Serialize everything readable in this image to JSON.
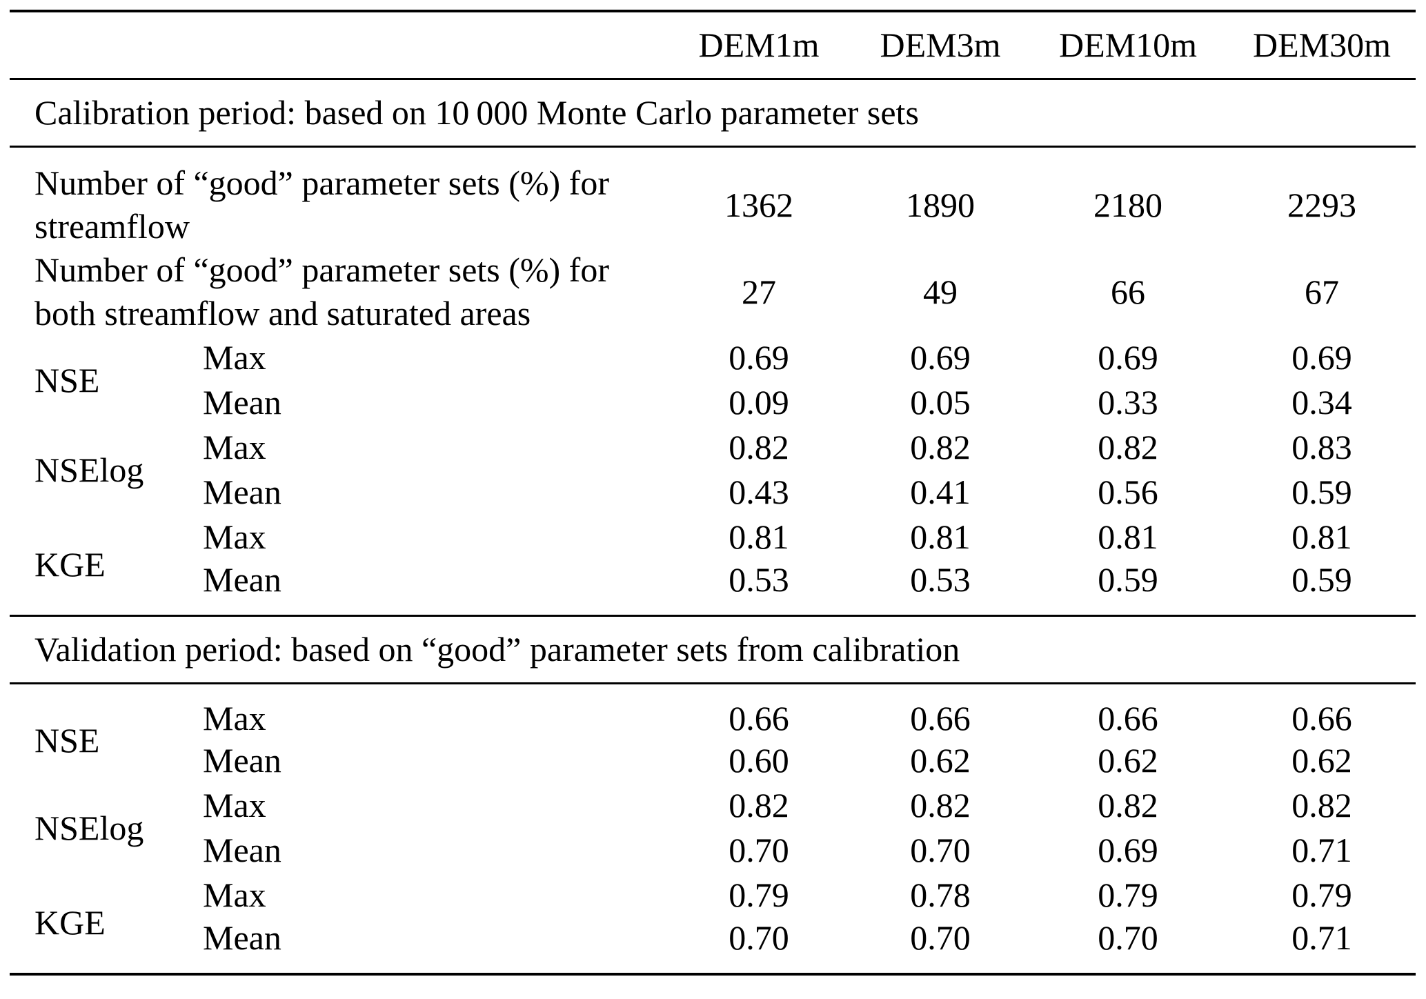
{
  "table": {
    "columns": [
      "DEM1m",
      "DEM3m",
      "DEM10m",
      "DEM30m"
    ],
    "sections": [
      {
        "header": "Calibration period: based on 10 000 Monte Carlo parameter sets",
        "label_rows": [
          {
            "label": "Number of “good” parameter sets (%) for\nstreamflow",
            "values": [
              "1362",
              "1890",
              "2180",
              "2293"
            ]
          },
          {
            "label": "Number of “good” parameter sets (%) for\nboth streamflow and saturated areas",
            "values": [
              "27",
              "49",
              "66",
              "67"
            ]
          }
        ],
        "metric_groups": [
          {
            "name": "NSE",
            "rows": [
              {
                "stat": "Max",
                "values": [
                  "0.69",
                  "0.69",
                  "0.69",
                  "0.69"
                ]
              },
              {
                "stat": "Mean",
                "values": [
                  "0.09",
                  "0.05",
                  "0.33",
                  "0.34"
                ]
              }
            ]
          },
          {
            "name": "NSElog",
            "rows": [
              {
                "stat": "Max",
                "values": [
                  "0.82",
                  "0.82",
                  "0.82",
                  "0.83"
                ]
              },
              {
                "stat": "Mean",
                "values": [
                  "0.43",
                  "0.41",
                  "0.56",
                  "0.59"
                ]
              }
            ]
          },
          {
            "name": "KGE",
            "rows": [
              {
                "stat": "Max",
                "values": [
                  "0.81",
                  "0.81",
                  "0.81",
                  "0.81"
                ]
              },
              {
                "stat": "Mean",
                "values": [
                  "0.53",
                  "0.53",
                  "0.59",
                  "0.59"
                ]
              }
            ]
          }
        ]
      },
      {
        "header": "Validation period: based on “good” parameter sets from calibration",
        "label_rows": [],
        "metric_groups": [
          {
            "name": "NSE",
            "rows": [
              {
                "stat": "Max",
                "values": [
                  "0.66",
                  "0.66",
                  "0.66",
                  "0.66"
                ]
              },
              {
                "stat": "Mean",
                "values": [
                  "0.60",
                  "0.62",
                  "0.62",
                  "0.62"
                ]
              }
            ]
          },
          {
            "name": "NSElog",
            "rows": [
              {
                "stat": "Max",
                "values": [
                  "0.82",
                  "0.82",
                  "0.82",
                  "0.82"
                ]
              },
              {
                "stat": "Mean",
                "values": [
                  "0.70",
                  "0.70",
                  "0.69",
                  "0.71"
                ]
              }
            ]
          },
          {
            "name": "KGE",
            "rows": [
              {
                "stat": "Max",
                "values": [
                  "0.79",
                  "0.78",
                  "0.79",
                  "0.79"
                ]
              },
              {
                "stat": "Mean",
                "values": [
                  "0.70",
                  "0.70",
                  "0.70",
                  "0.71"
                ]
              }
            ]
          }
        ]
      }
    ]
  }
}
